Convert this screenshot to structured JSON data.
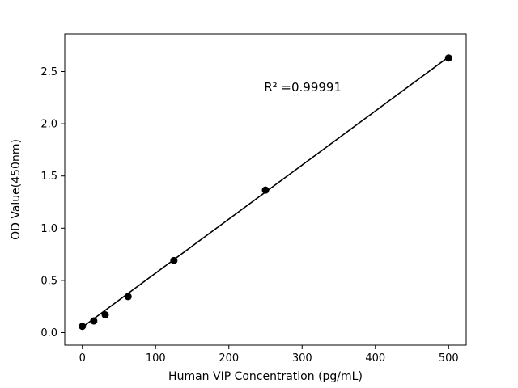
{
  "chart_data": {
    "type": "scatter",
    "title": "",
    "xlabel": "Human VIP Concentration (pg/mL)",
    "ylabel": "OD Value(450nm)",
    "x": [
      0,
      15.6,
      31.25,
      62.5,
      125,
      250,
      500
    ],
    "y": [
      0.06,
      0.112,
      0.17,
      0.345,
      0.69,
      1.365,
      2.63
    ],
    "fit_line": {
      "x": [
        0,
        500
      ],
      "y": [
        0.052,
        2.64
      ]
    },
    "annotation": {
      "text": "R² =0.99991",
      "x": 248,
      "y": 2.35
    },
    "xlim": [
      -24,
      524
    ],
    "ylim": [
      -0.12,
      2.86
    ],
    "xticks": [
      0,
      100,
      200,
      300,
      400,
      500
    ],
    "xtick_labels": [
      "0",
      "100",
      "200",
      "300",
      "400",
      "500"
    ],
    "yticks": [
      0.0,
      0.5,
      1.0,
      1.5,
      2.0,
      2.5
    ],
    "ytick_labels": [
      "0.0",
      "0.5",
      "1.0",
      "1.5",
      "2.0",
      "2.5"
    ],
    "grid": false,
    "legend_position": "none",
    "marker_color": "#000000",
    "line_color": "#000000",
    "background_color": "#ffffff"
  }
}
